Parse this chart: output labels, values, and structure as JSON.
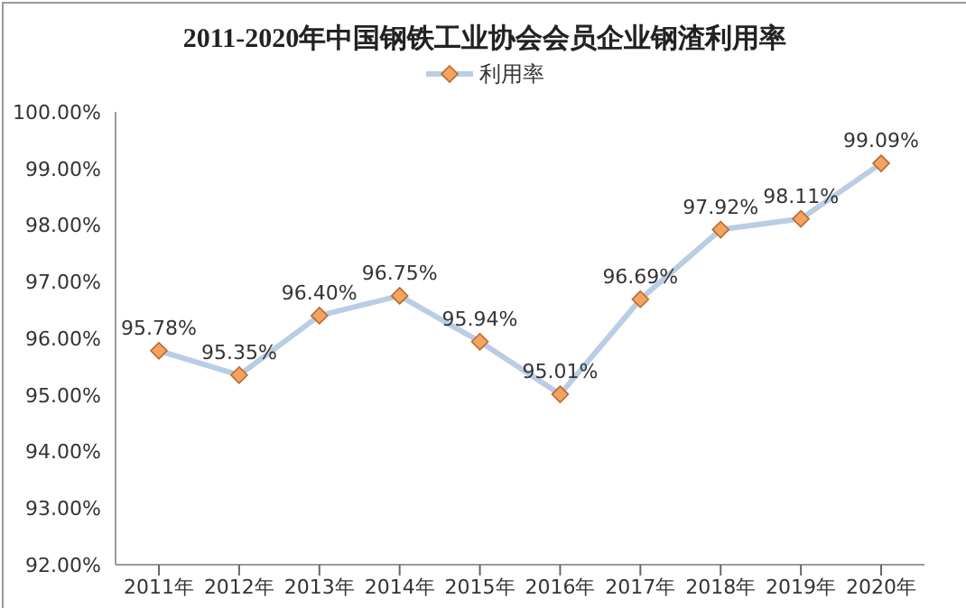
{
  "chart_data": {
    "type": "line",
    "title": "2011-2020年中国钢铁工业协会会员企业钢渣利用率",
    "categories": [
      "2011年",
      "2012年",
      "2013年",
      "2014年",
      "2015年",
      "2016年",
      "2017年",
      "2018年",
      "2019年",
      "2020年"
    ],
    "series": [
      {
        "name": "利用率",
        "color": "#b9cde5",
        "values": [
          95.78,
          95.35,
          96.4,
          96.75,
          95.94,
          95.01,
          96.69,
          97.92,
          98.11,
          99.09
        ]
      }
    ],
    "value_labels": [
      "95.78%",
      "95.35%",
      "96.40%",
      "96.75%",
      "95.94%",
      "95.01%",
      "96.69%",
      "97.92%",
      "98.11%",
      "99.09%"
    ],
    "ylim": [
      92,
      100
    ],
    "yticks": [
      {
        "value": 92,
        "label": "92.00%"
      },
      {
        "value": 93,
        "label": "93.00%"
      },
      {
        "value": 94,
        "label": "94.00%"
      },
      {
        "value": 95,
        "label": "95.00%"
      },
      {
        "value": 96,
        "label": "96.00%"
      },
      {
        "value": 97,
        "label": "97.00%"
      },
      {
        "value": 98,
        "label": "98.00%"
      },
      {
        "value": 99,
        "label": "99.00%"
      },
      {
        "value": 100,
        "label": "100.00%"
      }
    ],
    "legend": "top",
    "marker": "diamond",
    "grid": false
  }
}
